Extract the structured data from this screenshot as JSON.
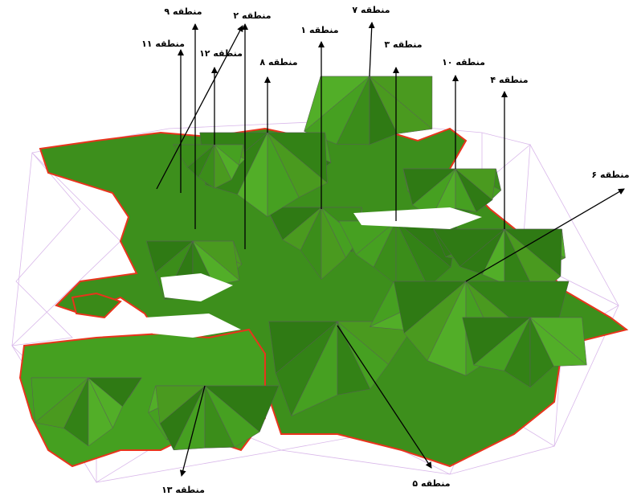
{
  "labels": {
    "region_1": "منطقه ۱",
    "region_2": "منطقه ۲",
    "region_3": "منطقه ۳",
    "region_4": "منطقه ۴",
    "region_5": "منطقه ۵",
    "region_6": "منطقه ۶",
    "region_7": "منطقه ۷",
    "region_8": "منطقه ۸",
    "region_9": "منطقه ۹",
    "region_10": "منطقه ۱۰",
    "region_11": "منطقه ۱۱",
    "region_12": "منطقه ۱۲",
    "region_13": "منطقه ۱۳"
  }
}
